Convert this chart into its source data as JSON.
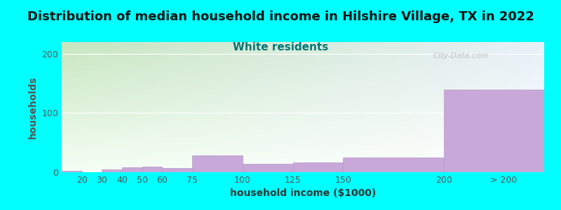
{
  "title": "Distribution of median household income in Hilshire Village, TX in 2022",
  "subtitle": "White residents",
  "xlabel": "household income ($1000)",
  "ylabel": "households",
  "background_color": "#00FFFF",
  "grad_color_topleft": "#c8e6c0",
  "grad_color_bottomright": "#f0f8f0",
  "grad_color_topright": "#e8f0f8",
  "bar_color": "#c8a8d8",
  "bar_edge_color": "#b898c8",
  "values": [
    2,
    0,
    5,
    8,
    10,
    7,
    28,
    14,
    17,
    25,
    140
  ],
  "bar_widths": [
    10,
    10,
    10,
    10,
    10,
    15,
    25,
    25,
    25,
    50,
    50
  ],
  "bar_lefts": [
    10,
    20,
    30,
    40,
    50,
    60,
    75,
    100,
    125,
    150,
    200
  ],
  "xlim": [
    10,
    250
  ],
  "ylim": [
    0,
    220
  ],
  "yticks": [
    0,
    100,
    200
  ],
  "title_fontsize": 13,
  "subtitle_fontsize": 11,
  "axis_label_fontsize": 10,
  "tick_fontsize": 9,
  "subtitle_color": "#007777",
  "title_color": "#111111",
  "watermark_text": "City-Data.com",
  "xtick_labels": [
    "20",
    "30",
    "40",
    "50",
    "60",
    "75",
    "100",
    "125",
    "150",
    "200",
    "> 200"
  ],
  "xtick_positions": [
    20,
    30,
    40,
    50,
    60,
    75,
    100,
    125,
    150,
    200,
    230
  ]
}
